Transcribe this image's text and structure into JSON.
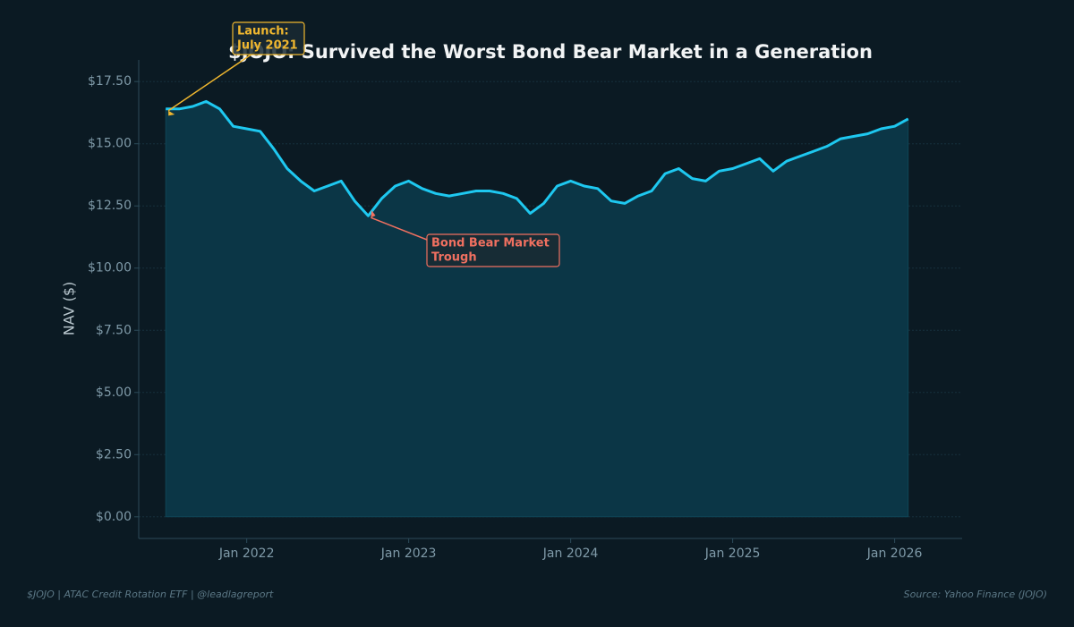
{
  "chart_data": {
    "type": "area",
    "title": "$JOJO: Survived the Worst Bond Bear Market in a Generation",
    "y_label": "NAV ($)",
    "footer_left": "$JOJO  |  ATAC Credit Rotation ETF  |  @leadlagreport",
    "footer_right": "Source: Yahoo Finance (JOJO)",
    "annotations": [
      {
        "lines": [
          "Launch:",
          "July 2021"
        ],
        "color": "#f0b72f"
      },
      {
        "lines": [
          "Bond Bear Market",
          "Trough"
        ],
        "color": "#f07060"
      }
    ],
    "x": [
      "2021-07",
      "2021-08",
      "2021-09",
      "2021-10",
      "2021-11",
      "2021-12",
      "2022-01",
      "2022-02",
      "2022-03",
      "2022-04",
      "2022-05",
      "2022-06",
      "2022-07",
      "2022-08",
      "2022-09",
      "2022-10",
      "2022-11",
      "2022-12",
      "2023-01",
      "2023-02",
      "2023-03",
      "2023-04",
      "2023-05",
      "2023-06",
      "2023-07",
      "2023-08",
      "2023-09",
      "2023-10",
      "2023-11",
      "2023-12",
      "2024-01",
      "2024-02",
      "2024-03",
      "2024-04",
      "2024-05",
      "2024-06",
      "2024-07",
      "2024-08",
      "2024-09",
      "2024-10",
      "2024-11",
      "2024-12",
      "2025-01",
      "2025-02",
      "2025-03",
      "2025-04",
      "2025-05",
      "2025-06",
      "2025-07",
      "2025-08",
      "2025-09",
      "2025-10",
      "2025-11",
      "2025-12",
      "2026-01",
      "2026-02"
    ],
    "series": [
      {
        "name": "NAV",
        "color": "#1ec8f0",
        "fill": "#0b3646",
        "values": [
          16.4,
          16.4,
          16.5,
          16.7,
          16.4,
          15.7,
          15.6,
          15.5,
          14.8,
          14.0,
          13.5,
          13.1,
          13.3,
          13.5,
          12.7,
          12.1,
          12.8,
          13.3,
          13.5,
          13.2,
          13.0,
          12.9,
          13.0,
          13.1,
          13.1,
          13.0,
          12.8,
          12.2,
          12.6,
          13.3,
          13.5,
          13.3,
          13.2,
          12.7,
          12.6,
          12.9,
          13.1,
          13.8,
          14.0,
          13.6,
          13.5,
          13.9,
          14.0,
          14.2,
          14.4,
          13.9,
          14.3,
          14.5,
          14.7,
          14.9,
          15.2,
          15.3,
          15.4,
          15.6,
          15.7,
          16.0
        ]
      }
    ],
    "xlim": [
      "2021-05",
      "2026-06"
    ],
    "xticks": [
      {
        "value": "2022-01",
        "label": "Jan 2022"
      },
      {
        "value": "2023-01",
        "label": "Jan 2023"
      },
      {
        "value": "2024-01",
        "label": "Jan 2024"
      },
      {
        "value": "2025-01",
        "label": "Jan 2025"
      },
      {
        "value": "2026-01",
        "label": "Jan 2026"
      }
    ],
    "ylim": [
      -0.87,
      18.37
    ],
    "yticks": [
      {
        "value": 0,
        "label": "$0.00"
      },
      {
        "value": 2.5,
        "label": "$2.50"
      },
      {
        "value": 5,
        "label": "$5.00"
      },
      {
        "value": 7.5,
        "label": "$7.50"
      },
      {
        "value": 10,
        "label": "$10.00"
      },
      {
        "value": 12.5,
        "label": "$12.50"
      },
      {
        "value": 15,
        "label": "$15.00"
      },
      {
        "value": 17.5,
        "label": "$17.50"
      }
    ],
    "grid": true
  }
}
